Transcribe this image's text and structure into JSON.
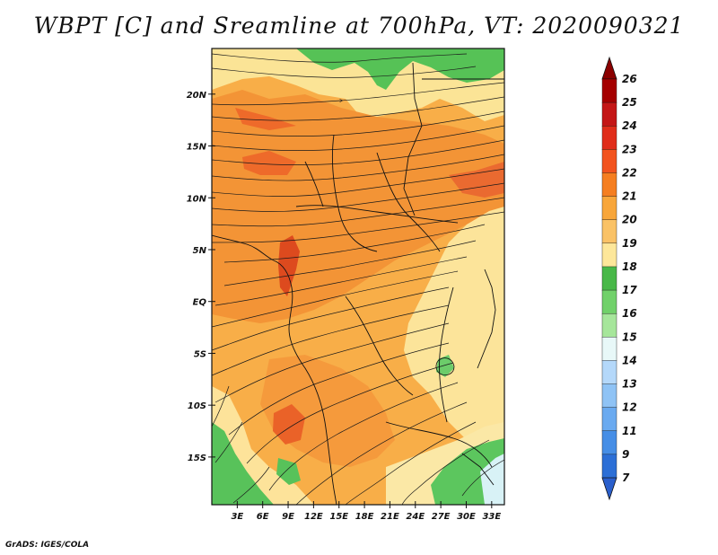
{
  "title": "WBPT [C] and Sreamline at 700hPa, VT: 2020090321",
  "credit": "GrADS: IGES/COLA",
  "lat_ticks": [
    {
      "label": "20N",
      "value": 20
    },
    {
      "label": "15N",
      "value": 15
    },
    {
      "label": "10N",
      "value": 10
    },
    {
      "label": "5N",
      "value": 5
    },
    {
      "label": "EQ",
      "value": 0
    },
    {
      "label": "5S",
      "value": -5
    },
    {
      "label": "10S",
      "value": -10
    },
    {
      "label": "15S",
      "value": -15
    }
  ],
  "lon_ticks": [
    {
      "label": "3E",
      "value": 3
    },
    {
      "label": "6E",
      "value": 6
    },
    {
      "label": "9E",
      "value": 9
    },
    {
      "label": "12E",
      "value": 12
    },
    {
      "label": "15E",
      "value": 15
    },
    {
      "label": "18E",
      "value": 18
    },
    {
      "label": "21E",
      "value": 21
    },
    {
      "label": "24E",
      "value": 24
    },
    {
      "label": "27E",
      "value": 27
    },
    {
      "label": "30E",
      "value": 30
    },
    {
      "label": "33E",
      "value": 33
    }
  ],
  "lat_range": [
    -19.6,
    24.4
  ],
  "lon_range": [
    0,
    34.5
  ],
  "colorbar": {
    "labels": [
      "26",
      "25",
      "24",
      "23",
      "22",
      "21",
      "20",
      "19",
      "18",
      "17",
      "16",
      "15",
      "14",
      "13",
      "12",
      "11",
      "9",
      "7"
    ],
    "colors": [
      "#a50000",
      "#c41616",
      "#e02d1a",
      "#f2531e",
      "#f57e20",
      "#f8a63a",
      "#fac266",
      "#fde79a",
      "#48b848",
      "#71d16a",
      "#a6e69b",
      "#e8f8f8",
      "#b4d8fa",
      "#8fc3f5",
      "#6aaaf0",
      "#468ee6",
      "#2c6fd6"
    ],
    "top_arrow_color": "#8b0000",
    "bottom_arrow_color": "#2a5fcc"
  },
  "map_regions": [
    {
      "name": "north-yellow-region",
      "color": "#fbe496"
    },
    {
      "name": "north-green-region",
      "color": "#56c256"
    },
    {
      "name": "gulf-yellow-region",
      "color": "#fce9a2"
    },
    {
      "name": "central-dark-orange-region",
      "color": "#f39436"
    },
    {
      "name": "red-band-north",
      "color": "#ee6a2a"
    },
    {
      "name": "red-patch-cameroon",
      "color": "#dd4a1e"
    },
    {
      "name": "red-patch-east",
      "color": "#ea6a30"
    },
    {
      "name": "east-yellow-region",
      "color": "#fce49a"
    },
    {
      "name": "lake-victoria-green",
      "color": "#6ccc6a"
    },
    {
      "name": "south-dark-orange-region",
      "color": "#f59a3c"
    },
    {
      "name": "red-patch-angola",
      "color": "#ea6228"
    },
    {
      "name": "southwest-yellow-region",
      "color": "#fde39a"
    },
    {
      "name": "southwest-green-region",
      "color": "#58c25a"
    },
    {
      "name": "southeast-yellow-region",
      "color": "#fbe8a6"
    },
    {
      "name": "southeast-green-region",
      "color": "#5cc65e"
    },
    {
      "name": "southeast-light-blue",
      "color": "#d8f2f6"
    }
  ]
}
